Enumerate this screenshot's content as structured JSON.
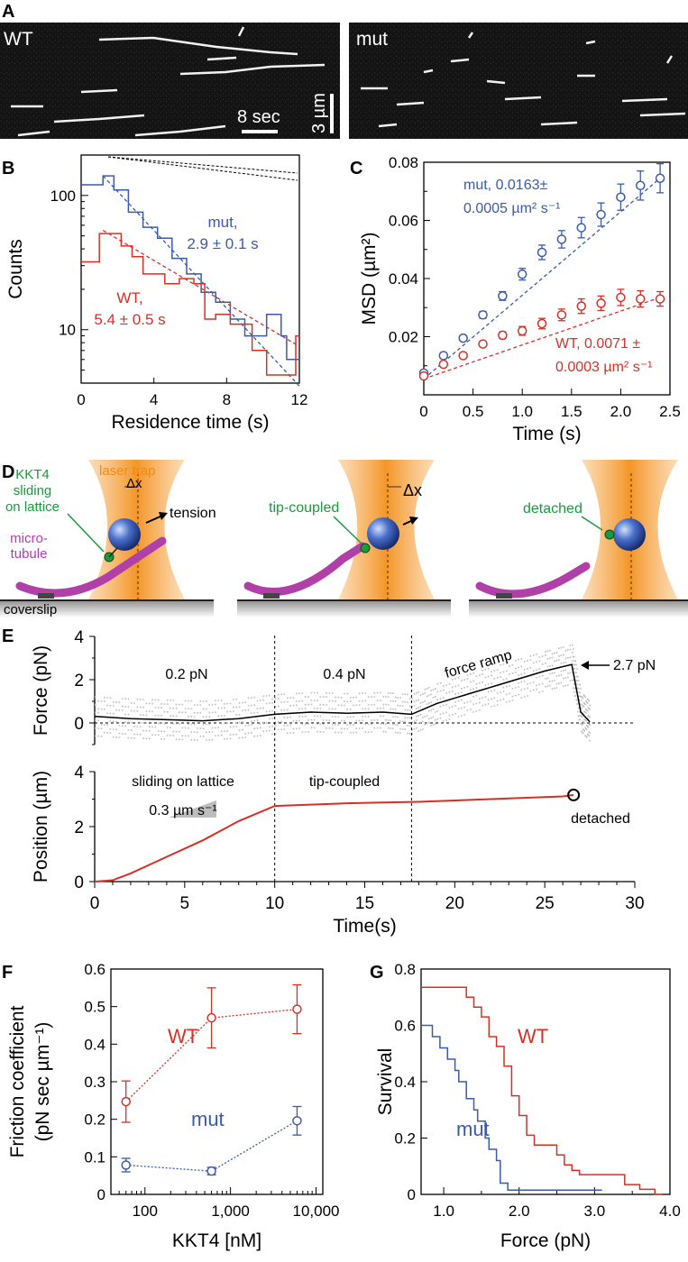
{
  "panels": {
    "A": {
      "letter": "A",
      "wt_label": "WT",
      "mut_label": "mut",
      "time_scale": "8 sec",
      "length_scale": "3 µm"
    },
    "B": {
      "letter": "B"
    },
    "C": {
      "letter": "C"
    },
    "D": {
      "letter": "D",
      "kkt4_label": [
        "KKT4",
        "sliding",
        "on lattice"
      ],
      "laser_trap": "laser trap",
      "delta_x": "Δx",
      "tension": "tension",
      "microtubule": [
        "micro-",
        "tubule"
      ],
      "coverslip": "coverslip",
      "tip_coupled": "tip-coupled",
      "detached": "detached"
    },
    "E": {
      "letter": "E"
    },
    "F": {
      "letter": "F"
    },
    "G": {
      "letter": "G"
    }
  },
  "chart_data": [
    {
      "id": "B",
      "type": "line",
      "xlabel": "Residence time (s)",
      "ylabel": "Counts",
      "xlim": [
        0,
        12
      ],
      "ylim": [
        4,
        200
      ],
      "yscale": "log",
      "xticks": [
        0,
        4,
        8,
        12
      ],
      "yticks": [
        10,
        100
      ],
      "series": [
        {
          "name": "mut",
          "color": "#3a5ba8",
          "label": [
            "mut,",
            "2.9 ± 0.1 s"
          ],
          "steps": [
            [
              0,
              120
            ],
            [
              1.2,
              120
            ],
            [
              1.2,
              140
            ],
            [
              1.8,
              140
            ],
            [
              1.8,
              110
            ],
            [
              2.6,
              110
            ],
            [
              2.6,
              75
            ],
            [
              3.4,
              75
            ],
            [
              3.4,
              58
            ],
            [
              4.2,
              58
            ],
            [
              4.2,
              48
            ],
            [
              5.0,
              48
            ],
            [
              5.0,
              34
            ],
            [
              5.8,
              34
            ],
            [
              5.8,
              26
            ],
            [
              6.6,
              26
            ],
            [
              6.6,
              19
            ],
            [
              7.4,
              19
            ],
            [
              7.4,
              16
            ],
            [
              8.2,
              16
            ],
            [
              8.2,
              12
            ],
            [
              9.0,
              12
            ],
            [
              9.0,
              9
            ],
            [
              10.2,
              9
            ],
            [
              10.2,
              13
            ],
            [
              11.0,
              13
            ],
            [
              11.0,
              9
            ],
            [
              11.3,
              9
            ],
            [
              11.3,
              6
            ],
            [
              12,
              6
            ]
          ],
          "fit": [
            [
              1.2,
              140
            ],
            [
              12,
              3.8
            ]
          ]
        },
        {
          "name": "WT",
          "color": "#d63026",
          "label": [
            "WT,",
            "5.4 ± 0.5 s"
          ],
          "steps": [
            [
              0,
              32
            ],
            [
              1.0,
              32
            ],
            [
              1.0,
              52
            ],
            [
              2.2,
              52
            ],
            [
              2.2,
              42
            ],
            [
              2.8,
              42
            ],
            [
              2.8,
              35
            ],
            [
              3.4,
              35
            ],
            [
              3.4,
              26
            ],
            [
              4.6,
              26
            ],
            [
              4.6,
              22
            ],
            [
              5.4,
              22
            ],
            [
              5.4,
              24
            ],
            [
              6.2,
              24
            ],
            [
              6.2,
              22
            ],
            [
              6.8,
              22
            ],
            [
              6.8,
              12
            ],
            [
              7.4,
              12
            ],
            [
              7.4,
              13
            ],
            [
              8.2,
              13
            ],
            [
              8.2,
              11
            ],
            [
              9.4,
              11
            ],
            [
              9.4,
              7
            ],
            [
              10.2,
              7
            ],
            [
              10.2,
              4.6
            ],
            [
              11.8,
              4.6
            ],
            [
              11.8,
              9
            ],
            [
              12,
              9
            ]
          ],
          "fit": [
            [
              1.2,
              55
            ],
            [
              12,
              7.5
            ]
          ]
        }
      ]
    },
    {
      "id": "C",
      "type": "scatter",
      "xlabel": "Time (s)",
      "ylabel": "MSD (µm²)",
      "xlim": [
        0,
        2.5
      ],
      "ylim": [
        0,
        0.08
      ],
      "xticks": [
        0,
        0.5,
        1.0,
        1.5,
        2.0,
        2.5
      ],
      "yticks": [
        0.02,
        0.04,
        0.06,
        0.08
      ],
      "series": [
        {
          "name": "mut",
          "color": "#3a5ba8",
          "label": [
            "mut, 0.0163±",
            "0.0005 µm² s⁻¹"
          ],
          "x": [
            0,
            0.2,
            0.4,
            0.6,
            0.8,
            1.0,
            1.2,
            1.4,
            1.6,
            1.8,
            2.0,
            2.2,
            2.4
          ],
          "y": [
            0.0075,
            0.0135,
            0.0195,
            0.0275,
            0.034,
            0.0415,
            0.049,
            0.0535,
            0.0575,
            0.062,
            0.068,
            0.072,
            0.0745
          ],
          "err": [
            0.001,
            0.001,
            0.001,
            0.0012,
            0.0015,
            0.002,
            0.0025,
            0.003,
            0.0035,
            0.004,
            0.0045,
            0.005,
            0.005
          ],
          "fit": [
            [
              0,
              0.0055
            ],
            [
              2.4,
              0.0745
            ]
          ]
        },
        {
          "name": "WT",
          "color": "#d63026",
          "label": [
            "WT, 0.0071 ±",
            "0.0003 µm² s⁻¹"
          ],
          "x": [
            0,
            0.2,
            0.4,
            0.6,
            0.8,
            1.0,
            1.2,
            1.4,
            1.6,
            1.8,
            2.0,
            2.2,
            2.4
          ],
          "y": [
            0.0065,
            0.0105,
            0.0135,
            0.0175,
            0.0205,
            0.022,
            0.0245,
            0.0275,
            0.0305,
            0.0315,
            0.0335,
            0.033,
            0.033
          ],
          "err": [
            0.0008,
            0.0008,
            0.001,
            0.001,
            0.0012,
            0.0015,
            0.0018,
            0.002,
            0.0025,
            0.0025,
            0.0028,
            0.0028,
            0.0025
          ],
          "fit": [
            [
              0,
              0.0055
            ],
            [
              2.4,
              0.0335
            ]
          ]
        }
      ]
    },
    {
      "id": "E-force",
      "type": "line",
      "ylabel": "Force (pN)",
      "xlim": [
        0,
        30
      ],
      "ylim": [
        -1,
        4
      ],
      "yticks": [
        0,
        2,
        4
      ],
      "segments": [
        "0.2 pN",
        "0.4 pN",
        "force ramp"
      ],
      "end_label": "2.7 pN",
      "trace": [
        [
          0,
          0.3
        ],
        [
          2,
          0.2
        ],
        [
          4,
          0.15
        ],
        [
          6,
          0.1
        ],
        [
          8,
          0.2
        ],
        [
          10,
          0.4
        ],
        [
          12,
          0.5
        ],
        [
          14,
          0.45
        ],
        [
          16,
          0.5
        ],
        [
          17.6,
          0.4
        ],
        [
          19,
          0.9
        ],
        [
          21,
          1.4
        ],
        [
          23,
          1.9
        ],
        [
          25,
          2.4
        ],
        [
          26.5,
          2.7
        ],
        [
          27,
          0.5
        ],
        [
          27.5,
          0.05
        ]
      ],
      "dividers": [
        10,
        17.6
      ]
    },
    {
      "id": "E-position",
      "type": "line",
      "xlabel": "Time(s)",
      "ylabel": "Position (µm)",
      "xlim": [
        0,
        30
      ],
      "ylim": [
        0,
        4
      ],
      "xticks": [
        0,
        5,
        10,
        15,
        20,
        25,
        30
      ],
      "yticks": [
        0,
        2,
        4
      ],
      "annotations": {
        "sliding": "sliding on lattice",
        "speed": "0.3 µm s⁻¹",
        "tip": "tip-coupled",
        "detached": "detached"
      },
      "trace": [
        [
          0,
          0
        ],
        [
          1,
          0.05
        ],
        [
          2,
          0.3
        ],
        [
          4,
          0.9
        ],
        [
          6,
          1.5
        ],
        [
          8,
          2.2
        ],
        [
          10,
          2.75
        ],
        [
          12,
          2.8
        ],
        [
          14,
          2.85
        ],
        [
          16,
          2.88
        ],
        [
          18,
          2.9
        ],
        [
          20,
          2.95
        ],
        [
          22,
          3.0
        ],
        [
          24,
          3.05
        ],
        [
          26,
          3.1
        ],
        [
          26.6,
          3.15
        ]
      ]
    },
    {
      "id": "F",
      "type": "scatter",
      "xlabel": "KKT4 [nM]",
      "ylabel": [
        "Friction coefficient",
        "(pN sec µm⁻¹)"
      ],
      "xscale": "log",
      "xlim": [
        40,
        12000
      ],
      "ylim": [
        0,
        0.6
      ],
      "xticks": [
        "100",
        "1,000",
        "10,000"
      ],
      "yticks": [
        0,
        0.1,
        0.2,
        0.3,
        0.4,
        0.5,
        0.6
      ],
      "series": [
        {
          "name": "WT",
          "color": "#d63026",
          "x": [
            60,
            600,
            6000
          ],
          "y": [
            0.247,
            0.47,
            0.493
          ],
          "err": [
            0.055,
            0.08,
            0.065
          ]
        },
        {
          "name": "mut",
          "color": "#3a5ba8",
          "x": [
            60,
            600,
            6000
          ],
          "y": [
            0.078,
            0.062,
            0.196
          ],
          "err": [
            0.018,
            0.01,
            0.038
          ]
        }
      ]
    },
    {
      "id": "G",
      "type": "line",
      "xlabel": "Force (pN)",
      "ylabel": "Survival",
      "xlim": [
        0.7,
        4.0
      ],
      "ylim": [
        0,
        0.8
      ],
      "xticks": [
        "1.0",
        "2.0",
        "3.0",
        "4.0"
      ],
      "yticks": [
        "0",
        "0.2",
        "0.4",
        "0.6",
        "0.8"
      ],
      "series": [
        {
          "name": "WT",
          "color": "#d63026",
          "x": [
            0.7,
            1.3,
            1.3,
            1.4,
            1.4,
            1.5,
            1.5,
            1.6,
            1.6,
            1.7,
            1.7,
            1.8,
            1.8,
            1.9,
            1.9,
            2.0,
            2.0,
            2.1,
            2.1,
            2.2,
            2.2,
            2.5,
            2.5,
            2.6,
            2.6,
            2.7,
            2.7,
            2.8,
            2.8,
            3.4,
            3.4,
            3.6,
            3.6,
            3.8,
            3.8,
            3.9
          ],
          "y": [
            0.735,
            0.735,
            0.7,
            0.7,
            0.665,
            0.665,
            0.63,
            0.63,
            0.56,
            0.56,
            0.525,
            0.525,
            0.455,
            0.455,
            0.35,
            0.35,
            0.28,
            0.28,
            0.21,
            0.21,
            0.175,
            0.175,
            0.14,
            0.14,
            0.105,
            0.105,
            0.085,
            0.085,
            0.07,
            0.07,
            0.035,
            0.035,
            0.018,
            0.018,
            0,
            0
          ]
        },
        {
          "name": "mut",
          "color": "#3a5ba8",
          "x": [
            0.7,
            0.85,
            0.85,
            0.95,
            0.95,
            1.05,
            1.05,
            1.15,
            1.15,
            1.2,
            1.2,
            1.3,
            1.3,
            1.4,
            1.4,
            1.45,
            1.45,
            1.55,
            1.55,
            1.6,
            1.6,
            1.7,
            1.7,
            1.75,
            1.75,
            1.85,
            1.85,
            3.1
          ],
          "y": [
            0.6,
            0.6,
            0.56,
            0.56,
            0.52,
            0.52,
            0.48,
            0.48,
            0.44,
            0.44,
            0.4,
            0.4,
            0.34,
            0.34,
            0.3,
            0.3,
            0.26,
            0.26,
            0.2,
            0.2,
            0.16,
            0.16,
            0.12,
            0.12,
            0.04,
            0.04,
            0.015,
            0.015
          ]
        }
      ]
    }
  ]
}
